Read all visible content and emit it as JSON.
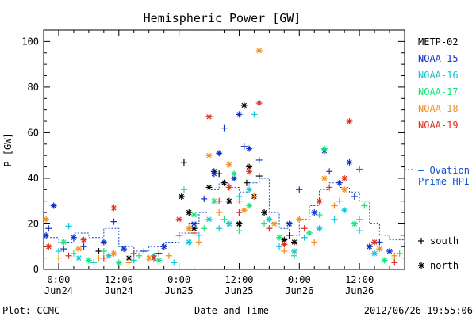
{
  "chart_data": {
    "type": "scatter",
    "title": "Hemispheric Power [GW]",
    "ylabel": "P [GW]",
    "xlabel": "Date and Time",
    "ylim": [
      0,
      105
    ],
    "xlim": [
      "2012-06-23 21:00",
      "2012-06-26 21:00"
    ],
    "yticks": [
      0,
      20,
      40,
      60,
      80,
      100
    ],
    "xticks": [
      {
        "line1": "0:00",
        "line2": "Jun24",
        "t": "2012-06-24 00:00"
      },
      {
        "line1": "12:00",
        "line2": "Jun24",
        "t": "2012-06-24 12:00"
      },
      {
        "line1": "0:00",
        "line2": "Jun25",
        "t": "2012-06-25 00:00"
      },
      {
        "line1": "12:00",
        "line2": "Jun25",
        "t": "2012-06-25 12:00"
      },
      {
        "line1": "0:00",
        "line2": "Jun26",
        "t": "2012-06-26 00:00"
      },
      {
        "line1": "12:00",
        "line2": "Jun26",
        "t": "2012-06-26 12:00"
      }
    ],
    "legend_placement": "right",
    "series": [
      {
        "name": "METP-02",
        "color": "#000000",
        "points": [
          [
            "2012-06-24 08:00",
            8,
            "+"
          ],
          [
            "2012-06-24 14:00",
            5,
            "*"
          ],
          [
            "2012-06-24 20:00",
            7,
            "+"
          ],
          [
            "2012-06-25 00:30",
            32,
            "*"
          ],
          [
            "2012-06-25 01:00",
            47,
            "+"
          ],
          [
            "2012-06-25 02:00",
            25,
            "*"
          ],
          [
            "2012-06-25 03:00",
            18,
            "*"
          ],
          [
            "2012-06-25 06:00",
            36,
            "*"
          ],
          [
            "2012-06-25 07:00",
            43,
            "*"
          ],
          [
            "2012-06-25 08:00",
            42,
            "+"
          ],
          [
            "2012-06-25 09:00",
            38,
            "*"
          ],
          [
            "2012-06-25 10:00",
            30,
            "*"
          ],
          [
            "2012-06-25 11:00",
            40,
            "+"
          ],
          [
            "2012-06-25 12:00",
            20,
            "*"
          ],
          [
            "2012-06-25 13:00",
            72,
            "*"
          ],
          [
            "2012-06-25 13:30",
            38,
            "+"
          ],
          [
            "2012-06-25 14:00",
            45,
            "*"
          ],
          [
            "2012-06-25 15:00",
            32,
            "*"
          ],
          [
            "2012-06-25 16:00",
            41,
            "+"
          ],
          [
            "2012-06-25 17:00",
            25,
            "*"
          ],
          [
            "2012-06-25 21:00",
            13,
            "*"
          ],
          [
            "2012-06-25 22:00",
            15,
            "+"
          ],
          [
            "2012-06-25 23:00",
            12,
            "*"
          ]
        ]
      },
      {
        "name": "NOAA-15",
        "color": "#1030d0",
        "points": [
          [
            "2012-06-23 21:30",
            15,
            "*"
          ],
          [
            "2012-06-23 22:00",
            18,
            "+"
          ],
          [
            "2012-06-23 23:00",
            28,
            "*"
          ],
          [
            "2012-06-24 01:00",
            9,
            "+"
          ],
          [
            "2012-06-24 03:00",
            14,
            "*"
          ],
          [
            "2012-06-24 05:00",
            10,
            "+"
          ],
          [
            "2012-06-24 09:00",
            12,
            "*"
          ],
          [
            "2012-06-24 11:00",
            21,
            "+"
          ],
          [
            "2012-06-24 13:00",
            9,
            "*"
          ],
          [
            "2012-06-24 17:00",
            8,
            "+"
          ],
          [
            "2012-06-24 21:00",
            10,
            "*"
          ],
          [
            "2012-06-25 00:00",
            15,
            "+"
          ],
          [
            "2012-06-25 03:00",
            20,
            "*"
          ],
          [
            "2012-06-25 05:00",
            31,
            "+"
          ],
          [
            "2012-06-25 07:00",
            42,
            "*"
          ],
          [
            "2012-06-25 08:00",
            51,
            "*"
          ],
          [
            "2012-06-25 09:00",
            62,
            "+"
          ],
          [
            "2012-06-25 11:00",
            40,
            "*"
          ],
          [
            "2012-06-25 12:00",
            68,
            "*"
          ],
          [
            "2012-06-25 13:00",
            54,
            "+"
          ],
          [
            "2012-06-25 14:00",
            53,
            "*"
          ],
          [
            "2012-06-25 16:00",
            48,
            "+"
          ],
          [
            "2012-06-25 22:00",
            20,
            "*"
          ],
          [
            "2012-06-26 00:00",
            35,
            "+"
          ],
          [
            "2012-06-26 03:00",
            25,
            "*"
          ],
          [
            "2012-06-26 05:00",
            52,
            "*"
          ],
          [
            "2012-06-26 06:00",
            43,
            "+"
          ],
          [
            "2012-06-26 08:00",
            38,
            "*"
          ],
          [
            "2012-06-26 10:00",
            47,
            "*"
          ],
          [
            "2012-06-26 11:00",
            32,
            "+"
          ],
          [
            "2012-06-26 14:00",
            10,
            "*"
          ],
          [
            "2012-06-26 16:00",
            12,
            "+"
          ],
          [
            "2012-06-26 18:00",
            8,
            "*"
          ]
        ]
      },
      {
        "name": "NOAA-16",
        "color": "#10c8d8",
        "points": [
          [
            "2012-06-24 00:00",
            8,
            "+"
          ],
          [
            "2012-06-24 02:00",
            19,
            "+"
          ],
          [
            "2012-06-24 04:00",
            5,
            "*"
          ],
          [
            "2012-06-24 07:00",
            3,
            "+"
          ],
          [
            "2012-06-24 10:00",
            6,
            "*"
          ],
          [
            "2012-06-24 15:00",
            4,
            "+"
          ],
          [
            "2012-06-24 19:00",
            6,
            "*"
          ],
          [
            "2012-06-24 23:00",
            3,
            "+"
          ],
          [
            "2012-06-25 02:00",
            12,
            "*"
          ],
          [
            "2012-06-25 04:00",
            15,
            "+"
          ],
          [
            "2012-06-25 06:00",
            22,
            "*"
          ],
          [
            "2012-06-25 08:00",
            18,
            "+"
          ],
          [
            "2012-06-25 10:00",
            20,
            "*"
          ],
          [
            "2012-06-25 12:00",
            32,
            "+"
          ],
          [
            "2012-06-25 14:00",
            35,
            "*"
          ],
          [
            "2012-06-25 15:00",
            68,
            "+"
          ],
          [
            "2012-06-25 18:00",
            22,
            "*"
          ],
          [
            "2012-06-25 20:00",
            10,
            "+"
          ],
          [
            "2012-06-25 23:00",
            8,
            "*"
          ],
          [
            "2012-06-26 01:00",
            14,
            "+"
          ],
          [
            "2012-06-26 04:00",
            18,
            "*"
          ],
          [
            "2012-06-26 07:00",
            22,
            "+"
          ],
          [
            "2012-06-26 09:00",
            26,
            "*"
          ],
          [
            "2012-06-26 12:00",
            17,
            "+"
          ],
          [
            "2012-06-26 15:00",
            7,
            "*"
          ],
          [
            "2012-06-26 19:00",
            5,
            "+"
          ]
        ]
      },
      {
        "name": "NOAA-17",
        "color": "#20e080",
        "points": [
          [
            "2012-06-24 01:00",
            12,
            "*"
          ],
          [
            "2012-06-24 03:00",
            7,
            "+"
          ],
          [
            "2012-06-24 06:00",
            4,
            "*"
          ],
          [
            "2012-06-24 09:00",
            8,
            "+"
          ],
          [
            "2012-06-24 12:00",
            3,
            "*"
          ],
          [
            "2012-06-24 16:00",
            6,
            "+"
          ],
          [
            "2012-06-24 20:00",
            4,
            "*"
          ],
          [
            "2012-06-25 01:00",
            35,
            "+"
          ],
          [
            "2012-06-25 03:00",
            24,
            "*"
          ],
          [
            "2012-06-25 05:00",
            18,
            "+"
          ],
          [
            "2012-06-25 07:00",
            30,
            "*"
          ],
          [
            "2012-06-25 09:00",
            22,
            "+"
          ],
          [
            "2012-06-25 11:00",
            42,
            "*"
          ],
          [
            "2012-06-25 12:00",
            17,
            "+"
          ],
          [
            "2012-06-25 14:00",
            28,
            "*"
          ],
          [
            "2012-06-25 17:00",
            20,
            "+"
          ],
          [
            "2012-06-25 20:00",
            14,
            "*"
          ],
          [
            "2012-06-25 23:00",
            6,
            "+"
          ],
          [
            "2012-06-26 02:00",
            16,
            "*"
          ],
          [
            "2012-06-26 04:00",
            24,
            "+"
          ],
          [
            "2012-06-26 05:00",
            53,
            "*"
          ],
          [
            "2012-06-26 08:00",
            30,
            "+"
          ],
          [
            "2012-06-26 11:00",
            20,
            "*"
          ],
          [
            "2012-06-26 13:00",
            28,
            "+"
          ],
          [
            "2012-06-26 17:00",
            4,
            "*"
          ],
          [
            "2012-06-26 20:00",
            7,
            "+"
          ]
        ]
      },
      {
        "name": "NOAA-18",
        "color": "#f09020",
        "points": [
          [
            "2012-06-23 21:30",
            22,
            "*"
          ],
          [
            "2012-06-24 00:00",
            5,
            "+"
          ],
          [
            "2012-06-24 04:00",
            9,
            "*"
          ],
          [
            "2012-06-24 08:00",
            5,
            "+"
          ],
          [
            "2012-06-24 11:00",
            7,
            "*"
          ],
          [
            "2012-06-24 14:00",
            3,
            "+"
          ],
          [
            "2012-06-24 18:00",
            5,
            "*"
          ],
          [
            "2012-06-24 22:00",
            6,
            "+"
          ],
          [
            "2012-06-25 02:00",
            18,
            "*"
          ],
          [
            "2012-06-25 04:00",
            12,
            "+"
          ],
          [
            "2012-06-25 06:00",
            50,
            "*"
          ],
          [
            "2012-06-25 08:00",
            25,
            "+"
          ],
          [
            "2012-06-25 10:00",
            46,
            "*"
          ],
          [
            "2012-06-25 12:00",
            30,
            "+"
          ],
          [
            "2012-06-25 13:00",
            26,
            "*"
          ],
          [
            "2012-06-25 15:00",
            32,
            "+"
          ],
          [
            "2012-06-25 16:00",
            96,
            "*"
          ],
          [
            "2012-06-25 19:00",
            20,
            "*"
          ],
          [
            "2012-06-25 21:00",
            8,
            "+"
          ],
          [
            "2012-06-26 00:00",
            22,
            "*"
          ],
          [
            "2012-06-26 03:00",
            12,
            "+"
          ],
          [
            "2012-06-26 05:00",
            40,
            "*"
          ],
          [
            "2012-06-26 07:00",
            28,
            "+"
          ],
          [
            "2012-06-26 09:00",
            35,
            "*"
          ],
          [
            "2012-06-26 12:00",
            22,
            "+"
          ],
          [
            "2012-06-26 16:00",
            9,
            "*"
          ],
          [
            "2012-06-26 19:00",
            6,
            "+"
          ]
        ]
      },
      {
        "name": "NOAA-19",
        "color": "#e03020",
        "points": [
          [
            "2012-06-23 22:00",
            10,
            "*"
          ],
          [
            "2012-06-24 02:00",
            6,
            "+"
          ],
          [
            "2012-06-24 05:00",
            13,
            "*"
          ],
          [
            "2012-06-24 09:00",
            5,
            "+"
          ],
          [
            "2012-06-24 11:00",
            27,
            "*"
          ],
          [
            "2012-06-24 15:00",
            7,
            "+"
          ],
          [
            "2012-06-24 19:00",
            5,
            "*"
          ],
          [
            "2012-06-25 00:00",
            22,
            "*"
          ],
          [
            "2012-06-25 03:00",
            16,
            "+"
          ],
          [
            "2012-06-25 06:00",
            67,
            "*"
          ],
          [
            "2012-06-25 08:00",
            30,
            "+"
          ],
          [
            "2012-06-25 10:00",
            36,
            "*"
          ],
          [
            "2012-06-25 12:00",
            25,
            "+"
          ],
          [
            "2012-06-25 14:00",
            43,
            "*"
          ],
          [
            "2012-06-25 16:00",
            73,
            "*"
          ],
          [
            "2012-06-25 18:00",
            18,
            "+"
          ],
          [
            "2012-06-25 21:00",
            11,
            "*"
          ],
          [
            "2012-06-26 01:00",
            18,
            "+"
          ],
          [
            "2012-06-26 04:00",
            30,
            "*"
          ],
          [
            "2012-06-26 06:00",
            36,
            "+"
          ],
          [
            "2012-06-26 09:00",
            40,
            "*"
          ],
          [
            "2012-06-26 10:00",
            65,
            "*"
          ],
          [
            "2012-06-26 12:00",
            44,
            "+"
          ],
          [
            "2012-06-26 15:00",
            12,
            "*"
          ],
          [
            "2012-06-26 19:00",
            3,
            "+"
          ]
        ]
      }
    ],
    "ovation": {
      "label_line1": "— Ovation",
      "label_line2": "Prime HPI",
      "color": "#1050d0",
      "points": [
        [
          "2012-06-23 21:00",
          14
        ],
        [
          "2012-06-24 00:00",
          12
        ],
        [
          "2012-06-24 03:00",
          16
        ],
        [
          "2012-06-24 06:00",
          14
        ],
        [
          "2012-06-24 09:00",
          18
        ],
        [
          "2012-06-24 12:00",
          10
        ],
        [
          "2012-06-24 15:00",
          8
        ],
        [
          "2012-06-24 18:00",
          10
        ],
        [
          "2012-06-24 21:00",
          12
        ],
        [
          "2012-06-25 00:00",
          16
        ],
        [
          "2012-06-25 02:00",
          20
        ],
        [
          "2012-06-25 04:00",
          25
        ],
        [
          "2012-06-25 06:00",
          35
        ],
        [
          "2012-06-25 08:00",
          38
        ],
        [
          "2012-06-25 10:00",
          36
        ],
        [
          "2012-06-25 12:00",
          34
        ],
        [
          "2012-06-25 14:00",
          38
        ],
        [
          "2012-06-25 16:00",
          40
        ],
        [
          "2012-06-25 18:00",
          25
        ],
        [
          "2012-06-25 20:00",
          18
        ],
        [
          "2012-06-25 22:00",
          15
        ],
        [
          "2012-06-26 00:00",
          22
        ],
        [
          "2012-06-26 02:00",
          28
        ],
        [
          "2012-06-26 04:00",
          35
        ],
        [
          "2012-06-26 06:00",
          38
        ],
        [
          "2012-06-26 08:00",
          36
        ],
        [
          "2012-06-26 10:00",
          34
        ],
        [
          "2012-06-26 12:00",
          30
        ],
        [
          "2012-06-26 14:00",
          20
        ],
        [
          "2012-06-26 16:00",
          15
        ],
        [
          "2012-06-26 18:00",
          13
        ],
        [
          "2012-06-26 21:00",
          12
        ]
      ]
    },
    "marker_legend": [
      {
        "symbol": "+",
        "label": "south"
      },
      {
        "symbol": "*",
        "label": "north"
      }
    ]
  },
  "footer": {
    "plot_credit": "Plot: CCMC",
    "timestamp": "2012/06/26 19:55:06"
  }
}
